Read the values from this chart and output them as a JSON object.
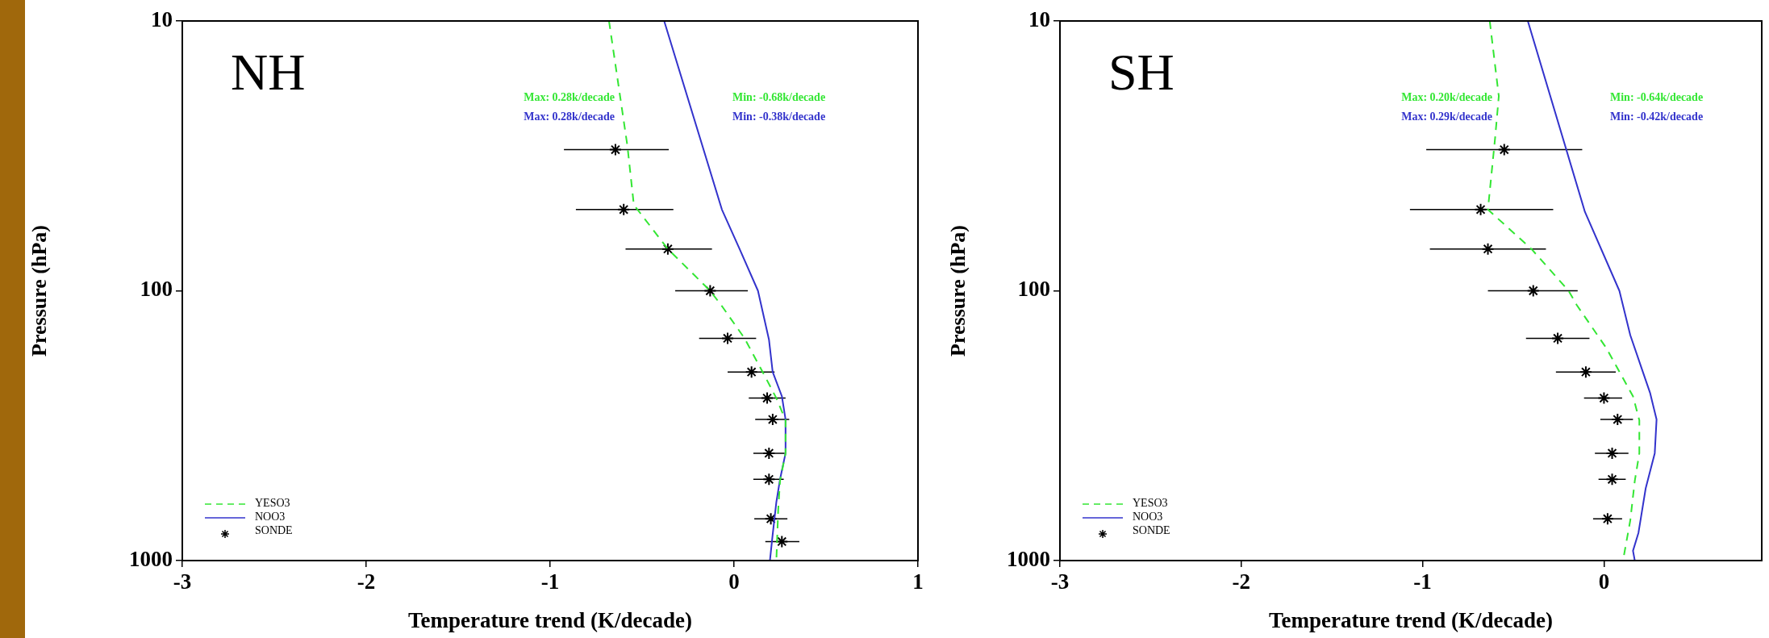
{
  "chart_data": [
    {
      "type": "line",
      "xlabel": "Temperature trend (K/decade)",
      "ylabel": "Pressure (hPa)",
      "xlim": [
        -3,
        1
      ],
      "xticks": [
        -3,
        -2,
        -1,
        0,
        1
      ],
      "ylim": [
        1000,
        10
      ],
      "yticks": [
        10,
        100,
        1000
      ],
      "log": "y",
      "legend": "bottom left",
      "annotations": [
        "NH",
        "Max: 0.28k/decade",
        "Max: 0.28k/decade",
        "Min: -0.68k/decade",
        "Min: -0.38k/decade"
      ],
      "series": [
        {
          "name": "YESO3",
          "type": "line",
          "color": "#33e633",
          "line_style": "dashed",
          "marker": "none",
          "x": [
            -0.68,
            -0.58,
            -0.545,
            -0.36,
            -0.13,
            -0.066,
            0.057,
            0.167,
            0.23,
            0.28,
            0.28,
            0.25,
            0.24,
            0.23
          ],
          "values": [
            10,
            29,
            48,
            70,
            100,
            114,
            150,
            207,
            250,
            302,
            400,
            506,
            650,
            1000
          ]
        },
        {
          "name": "NOO3",
          "type": "line",
          "color": "#3333cc",
          "line_style": "solid",
          "marker": "none",
          "x": [
            -0.38,
            -0.066,
            0.03,
            0.13,
            0.19,
            0.21,
            0.26,
            0.28,
            0.28,
            0.25,
            0.23,
            0.21,
            0.195
          ],
          "values": [
            10,
            50,
            70,
            100,
            152,
            200,
            246,
            300,
            400,
            500,
            607,
            800,
            1000
          ]
        },
        {
          "name": "SONDE",
          "type": "scatter",
          "color": "#000000",
          "marker": "cross",
          "x": [
            -0.645,
            -0.6,
            -0.36,
            -0.13,
            -0.035,
            0.095,
            0.18,
            0.21,
            0.19,
            0.19,
            0.2,
            0.26
          ],
          "values": [
            30,
            50,
            70,
            100,
            150,
            200,
            250,
            300,
            400,
            500,
            700,
            850
          ],
          "xerrors": [
            [
              -0.925,
              -0.355
            ],
            [
              -0.86,
              -0.33
            ],
            [
              -0.59,
              -0.12
            ],
            [
              -0.32,
              0.075
            ],
            [
              -0.19,
              0.12
            ],
            [
              -0.035,
              0.22
            ],
            [
              0.08,
              0.28
            ],
            [
              0.115,
              0.3
            ],
            [
              0.105,
              0.275
            ],
            [
              0.105,
              0.27
            ],
            [
              0.11,
              0.29
            ],
            [
              0.17,
              0.355
            ]
          ]
        }
      ]
    },
    {
      "type": "line",
      "xlabel": "Temperature trend (K/decade)",
      "ylabel": "Pressure (hPa)",
      "xlim": [
        -3,
        0.87
      ],
      "xticks": [
        -3,
        -2,
        -1,
        0
      ],
      "ylim": [
        1000,
        10
      ],
      "yticks": [
        10,
        100,
        1000
      ],
      "log": "y",
      "legend": "bottom left",
      "annotations": [
        "SH",
        "Max: 0.20k/decade",
        "Max: 0.29k/decade",
        "Min: -0.64k/decade",
        "Min: -0.42k/decade"
      ],
      "series": [
        {
          "name": "YESO3",
          "type": "line",
          "color": "#33e633",
          "line_style": "dashed",
          "marker": "none",
          "x": [
            -0.63,
            -0.58,
            -0.6,
            -0.64,
            -0.4,
            -0.195,
            -0.15,
            0.013,
            0.16,
            0.195,
            0.195,
            0.17,
            0.145,
            0.105
          ],
          "values": [
            10,
            19,
            27,
            50,
            70,
            100,
            113,
            163,
            246,
            302,
            400,
            506,
            710,
            1000
          ]
        },
        {
          "name": "NOO3",
          "type": "line",
          "color": "#3333cc",
          "line_style": "solid",
          "marker": "none",
          "x": [
            -0.42,
            -0.105,
            0.085,
            0.145,
            0.255,
            0.29,
            0.28,
            0.23,
            0.19,
            0.16,
            0.17
          ],
          "values": [
            10,
            51,
            100,
            146,
            240,
            300,
            400,
            540,
            790,
            920,
            1000
          ]
        },
        {
          "name": "SONDE",
          "type": "scatter",
          "color": "#000000",
          "marker": "cross",
          "x": [
            -0.55,
            -0.68,
            -0.64,
            -0.39,
            -0.255,
            -0.1,
            0.0,
            0.075,
            0.045,
            0.045,
            0.02
          ],
          "values": [
            30,
            50,
            70,
            100,
            150,
            200,
            250,
            300,
            400,
            500,
            700
          ],
          "xerrors": [
            [
              -0.98,
              -0.12
            ],
            [
              -1.07,
              -0.28
            ],
            [
              -0.96,
              -0.32
            ],
            [
              -0.64,
              -0.145
            ],
            [
              -0.43,
              -0.08
            ],
            [
              -0.265,
              0.065
            ],
            [
              -0.11,
              0.1
            ],
            [
              -0.02,
              0.16
            ],
            [
              -0.05,
              0.135
            ],
            [
              -0.03,
              0.12
            ],
            [
              -0.06,
              0.1
            ]
          ]
        }
      ]
    }
  ]
}
